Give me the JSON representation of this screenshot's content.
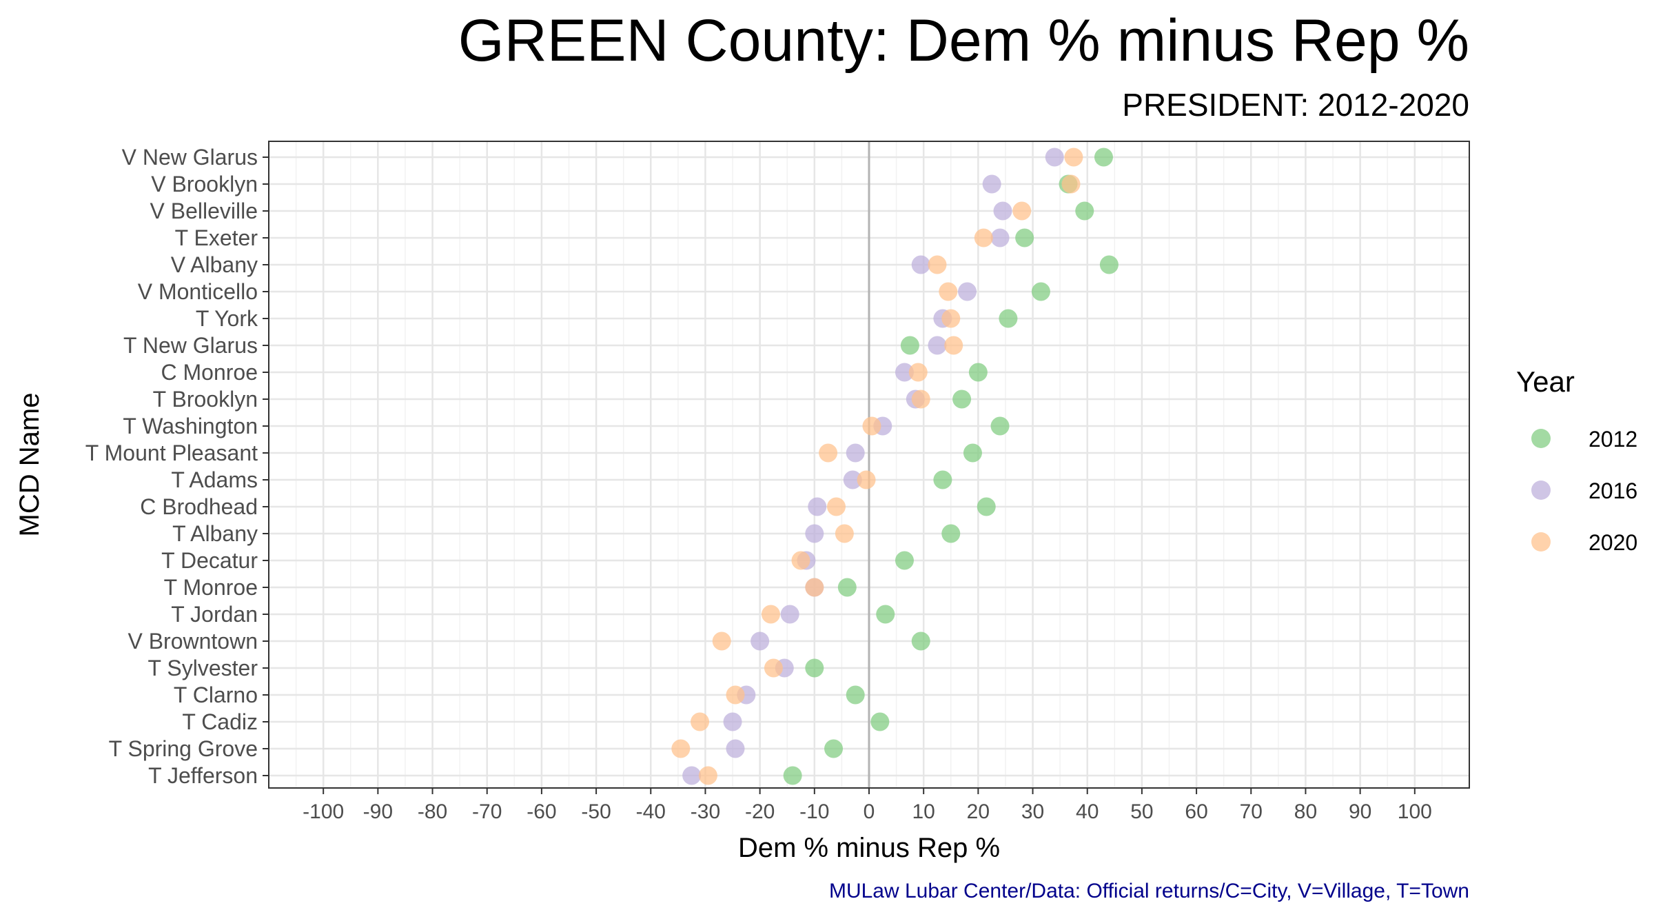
{
  "chart_data": {
    "type": "scatter",
    "title": "GREEN County: Dem % minus Rep %",
    "subtitle": "PRESIDENT: 2012-2020",
    "xlabel": "Dem % minus Rep %",
    "ylabel": "MCD Name",
    "xlim": [
      -110,
      110
    ],
    "xticks": [
      -100,
      -90,
      -80,
      -70,
      -60,
      -50,
      -40,
      -30,
      -20,
      -10,
      0,
      10,
      20,
      30,
      40,
      50,
      60,
      70,
      80,
      90,
      100
    ],
    "grid": true,
    "reference_line": 0,
    "legend": {
      "title": "Year",
      "position": "right"
    },
    "caption": "MULaw Lubar Center/Data: Official returns/C=City, V=Village, T=Town",
    "categories": [
      "V New Glarus",
      "V Brooklyn",
      "V Belleville",
      "T Exeter",
      "V Albany",
      "V Monticello",
      "T York",
      "T New Glarus",
      "C Monroe",
      "T Brooklyn",
      "T Washington",
      "T Mount Pleasant",
      "T Adams",
      "C Brodhead",
      "T Albany",
      "T Decatur",
      "T Monroe",
      "T Jordan",
      "V Browntown",
      "T Sylvester",
      "T Clarno",
      "T Cadiz",
      "T Spring Grove",
      "T Jefferson"
    ],
    "series": [
      {
        "name": "2012",
        "color": "#7fcc7f",
        "values": [
          43,
          36.5,
          39.5,
          28.5,
          44,
          31.5,
          25.5,
          7.5,
          20,
          17,
          24,
          19,
          13.5,
          21.5,
          15,
          6.5,
          -4,
          3,
          9.5,
          -10,
          -2.5,
          2,
          -6.5,
          -14
        ]
      },
      {
        "name": "2016",
        "color": "#bcaedb",
        "values": [
          34,
          22.5,
          24.5,
          24,
          9.5,
          18,
          13.5,
          12.5,
          6.5,
          8.5,
          2.5,
          -2.5,
          -3,
          -9.5,
          -10,
          -11.5,
          -10,
          -14.5,
          -20,
          -15.5,
          -22.5,
          -25,
          -24.5,
          -32.5
        ]
      },
      {
        "name": "2020",
        "color": "#ffc08a",
        "values": [
          37.5,
          37,
          28,
          21,
          12.5,
          14.5,
          15,
          15.5,
          9,
          9.5,
          0.5,
          -7.5,
          -0.5,
          -6,
          -4.5,
          -12.5,
          -10,
          -18,
          -27,
          -17.5,
          -24.5,
          -31,
          -34.5,
          -29.5
        ]
      }
    ]
  }
}
